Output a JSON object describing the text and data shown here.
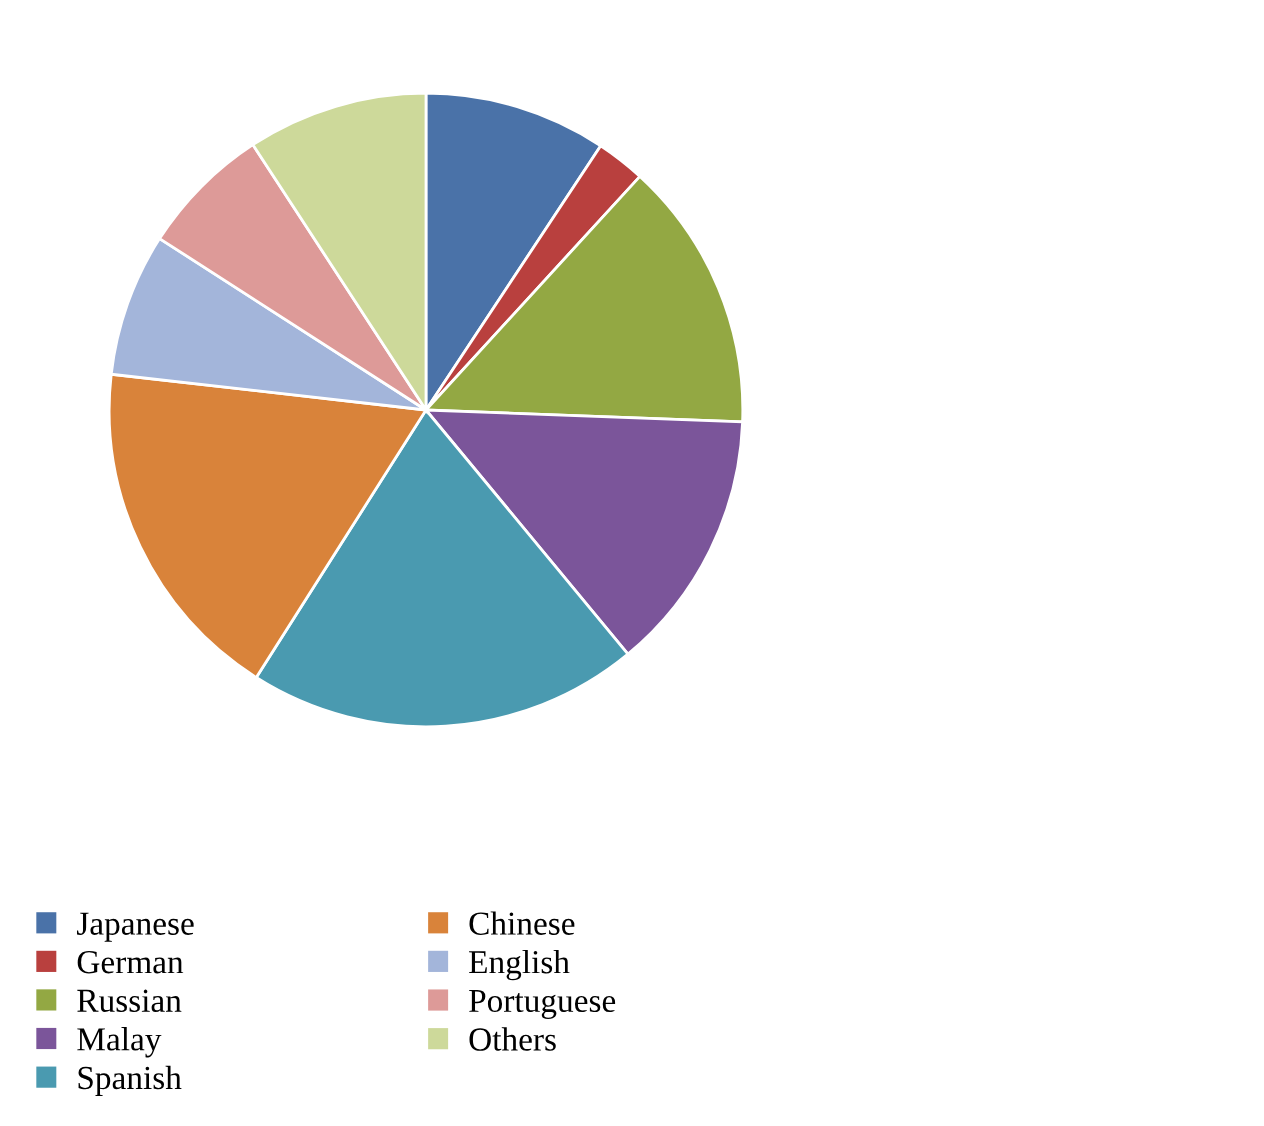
{
  "chart_data": {
    "type": "pie",
    "categories": [
      "Japanese",
      "German",
      "Russian",
      "Malay",
      "Spanish",
      "Chinese",
      "English",
      "Portuguese",
      "Others"
    ],
    "values": [
      9.3,
      2.5,
      13.8,
      13.4,
      20,
      17.8,
      7.3,
      6.7,
      9.2
    ],
    "colors": [
      "#4a72a8",
      "#b9403e",
      "#93a843",
      "#7b559a",
      "#4a9ab0",
      "#d9833a",
      "#a3b5da",
      "#dd9a98",
      "#cdd99a"
    ],
    "legend": "bottom left"
  }
}
